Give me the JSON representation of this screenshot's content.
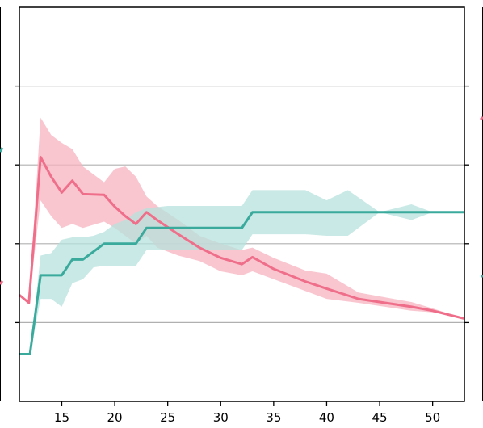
{
  "chart_data": {
    "type": "line",
    "title": "",
    "xlabel": "",
    "ylabel": "",
    "xlim": [
      11,
      53
    ],
    "ylim": [
      0,
      5
    ],
    "x_ticks": [
      15,
      20,
      25,
      30,
      35,
      40,
      45,
      50
    ],
    "x_tick_labels": [
      "15",
      "20",
      "25",
      "30",
      "35",
      "40",
      "45",
      "50"
    ],
    "y_gridlines": [
      1,
      2,
      3,
      4
    ],
    "grid": "horizontal",
    "legend": "none",
    "series": [
      {
        "color": "#ef6f8a",
        "band_color": "#f7b3c0",
        "x": [
          11,
          11.9,
          13,
          14,
          15,
          16,
          17,
          19,
          20,
          21,
          22,
          23,
          24,
          26,
          28,
          30,
          32,
          33,
          35,
          38,
          40,
          43,
          48,
          50,
          53
        ],
        "values": [
          1.35,
          1.25,
          3.1,
          2.85,
          2.65,
          2.8,
          2.63,
          2.62,
          2.47,
          2.35,
          2.25,
          2.4,
          2.3,
          2.12,
          1.95,
          1.82,
          1.74,
          1.83,
          1.68,
          1.52,
          1.43,
          1.3,
          1.2,
          1.15,
          1.05
        ],
        "upper": [
          1.35,
          1.25,
          3.6,
          3.38,
          3.28,
          3.2,
          2.98,
          2.78,
          2.95,
          2.98,
          2.85,
          2.6,
          2.48,
          2.3,
          2.1,
          2.0,
          1.92,
          1.95,
          1.82,
          1.66,
          1.62,
          1.38,
          1.26,
          1.18,
          1.05
        ],
        "lower": [
          1.35,
          1.25,
          2.55,
          2.35,
          2.2,
          2.25,
          2.2,
          2.28,
          2.2,
          2.1,
          2.0,
          2.1,
          1.95,
          1.85,
          1.78,
          1.65,
          1.6,
          1.65,
          1.55,
          1.4,
          1.3,
          1.25,
          1.15,
          1.13,
          1.05
        ]
      },
      {
        "color": "#3aaa9d",
        "band_color": "#b5e1dc",
        "x": [
          11,
          11.9,
          12,
          13,
          14,
          15,
          16,
          17,
          18,
          19,
          20,
          21,
          22,
          23,
          25,
          30,
          32,
          33,
          35,
          38,
          40,
          42,
          45,
          48,
          50,
          53
        ],
        "values": [
          0.6,
          0.6,
          0.6,
          1.6,
          1.6,
          1.6,
          1.8,
          1.8,
          1.9,
          2.0,
          2.0,
          2.0,
          2.0,
          2.2,
          2.2,
          2.2,
          2.2,
          2.4,
          2.4,
          2.4,
          2.4,
          2.4,
          2.4,
          2.4,
          2.4,
          2.4
        ],
        "upper": [
          0.6,
          0.6,
          0.6,
          1.85,
          1.88,
          2.05,
          2.08,
          2.08,
          2.1,
          2.15,
          2.25,
          2.3,
          2.4,
          2.45,
          2.48,
          2.48,
          2.48,
          2.68,
          2.68,
          2.68,
          2.55,
          2.68,
          2.4,
          2.5,
          2.4,
          2.4
        ],
        "lower": [
          0.6,
          0.6,
          0.6,
          1.3,
          1.3,
          1.2,
          1.5,
          1.55,
          1.7,
          1.72,
          1.72,
          1.72,
          1.72,
          1.92,
          1.92,
          1.92,
          1.92,
          2.12,
          2.12,
          2.12,
          2.1,
          2.1,
          2.4,
          2.3,
          2.4,
          2.4
        ]
      }
    ]
  }
}
